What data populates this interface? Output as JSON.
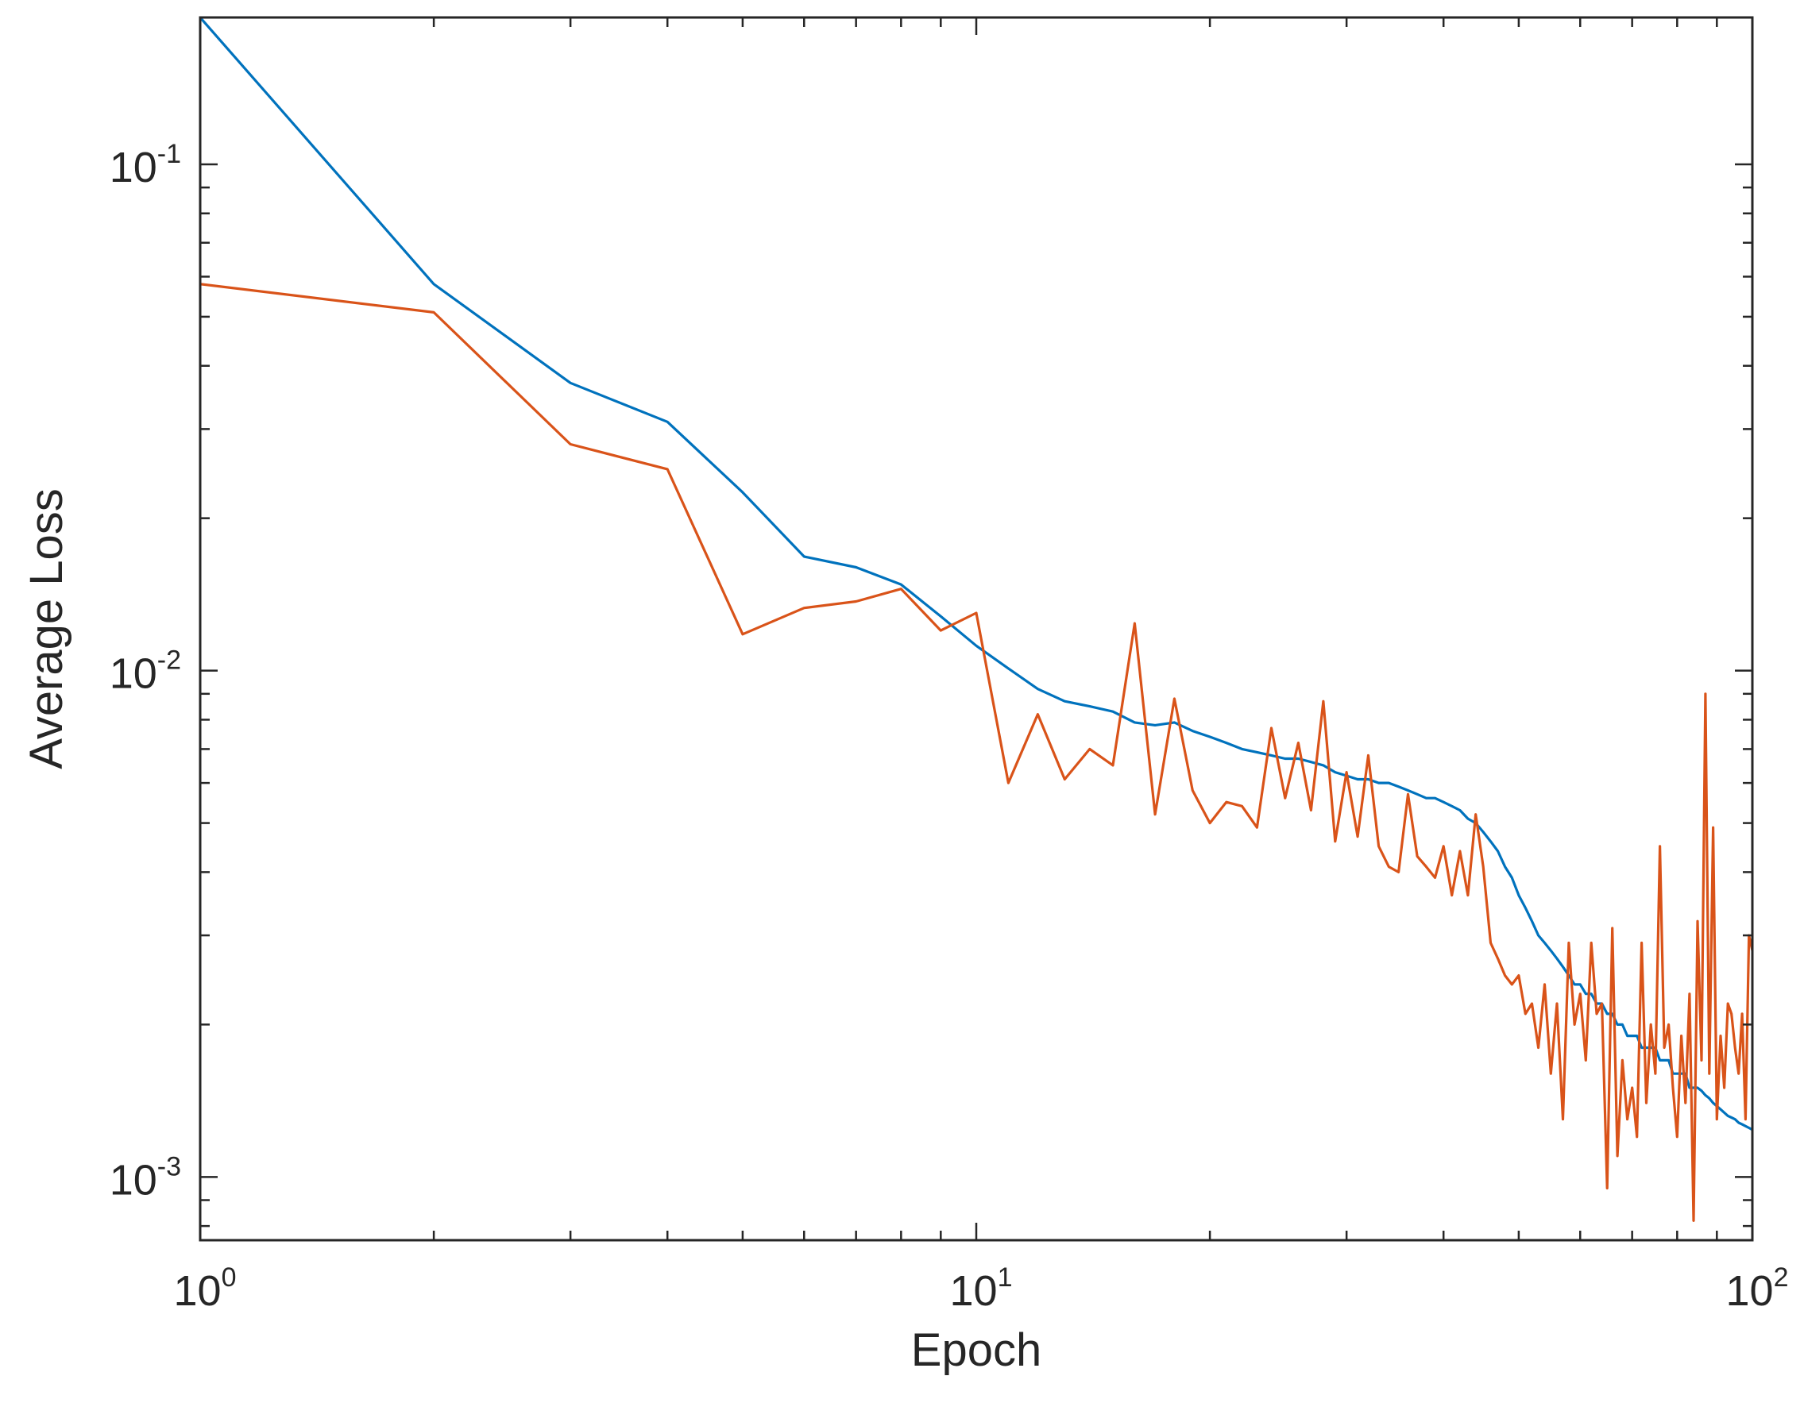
{
  "chart_data": {
    "type": "line",
    "title": "",
    "xlabel": "Epoch",
    "ylabel": "Average Loss",
    "xscale": "log",
    "yscale": "log",
    "xlim": [
      1,
      100
    ],
    "ylim": [
      0.00075,
      0.195
    ],
    "grid": false,
    "legend": "none",
    "x_ticks": [
      {
        "value": 1,
        "base": "10",
        "exp": "0"
      },
      {
        "value": 10,
        "base": "10",
        "exp": "1"
      },
      {
        "value": 100,
        "base": "10",
        "exp": "2"
      }
    ],
    "y_ticks": [
      {
        "value": 0.1,
        "base": "10",
        "exp": "-1"
      },
      {
        "value": 0.01,
        "base": "10",
        "exp": "-2"
      },
      {
        "value": 0.001,
        "base": "10",
        "exp": "-3"
      }
    ],
    "series": [
      {
        "color": "#0072BD",
        "x": [
          1,
          2,
          3,
          4,
          5,
          6,
          7,
          8,
          9,
          10,
          11,
          12,
          13,
          14,
          15,
          16,
          17,
          18,
          19,
          20,
          21,
          22,
          23,
          24,
          25,
          26,
          27,
          28,
          29,
          30,
          31,
          32,
          33,
          34,
          35,
          36,
          37,
          38,
          39,
          40,
          41,
          42,
          43,
          44,
          45,
          46,
          47,
          48,
          49,
          50,
          51,
          52,
          53,
          54,
          55,
          56,
          57,
          58,
          59,
          60,
          61,
          62,
          63,
          64,
          65,
          66,
          67,
          68,
          69,
          70,
          71,
          72,
          73,
          74,
          75,
          76,
          77,
          78,
          79,
          80,
          81,
          82,
          83,
          84,
          85,
          86,
          87,
          88,
          89,
          90,
          91,
          92,
          93,
          94,
          95,
          96,
          97,
          98,
          99,
          100
        ],
        "values": [
          0.195,
          0.058,
          0.037,
          0.031,
          0.0225,
          0.0168,
          0.016,
          0.0148,
          0.0128,
          0.0112,
          0.0101,
          0.0092,
          0.0087,
          0.0085,
          0.0083,
          0.0079,
          0.0078,
          0.0079,
          0.0076,
          0.0074,
          0.0072,
          0.007,
          0.0069,
          0.0068,
          0.0067,
          0.0067,
          0.0066,
          0.0065,
          0.0063,
          0.0062,
          0.0061,
          0.0061,
          0.006,
          0.006,
          0.0059,
          0.0058,
          0.0057,
          0.0056,
          0.0056,
          0.0055,
          0.0054,
          0.0053,
          0.0051,
          0.005,
          0.0048,
          0.0046,
          0.0044,
          0.0041,
          0.0039,
          0.0036,
          0.0034,
          0.0032,
          0.003,
          0.0029,
          0.0028,
          0.0027,
          0.0026,
          0.0025,
          0.0024,
          0.0024,
          0.0023,
          0.0023,
          0.0022,
          0.0022,
          0.0021,
          0.0021,
          0.002,
          0.002,
          0.0019,
          0.0019,
          0.0019,
          0.0018,
          0.0018,
          0.0018,
          0.0018,
          0.0017,
          0.0017,
          0.0017,
          0.0016,
          0.0016,
          0.0016,
          0.0016,
          0.0015,
          0.0015,
          0.0015,
          0.00148,
          0.00145,
          0.00143,
          0.0014,
          0.00138,
          0.00136,
          0.00134,
          0.00132,
          0.00131,
          0.0013,
          0.00128,
          0.00127,
          0.00126,
          0.00125,
          0.00124
        ]
      },
      {
        "color": "#D95319",
        "x": [
          1,
          2,
          3,
          4,
          5,
          6,
          7,
          8,
          9,
          10,
          11,
          12,
          13,
          14,
          15,
          16,
          17,
          18,
          19,
          20,
          21,
          22,
          23,
          24,
          25,
          26,
          27,
          28,
          29,
          30,
          31,
          32,
          33,
          34,
          35,
          36,
          37,
          38,
          39,
          40,
          41,
          42,
          43,
          44,
          45,
          46,
          47,
          48,
          49,
          50,
          51,
          52,
          53,
          54,
          55,
          56,
          57,
          58,
          59,
          60,
          61,
          62,
          63,
          64,
          65,
          66,
          67,
          68,
          69,
          70,
          71,
          72,
          73,
          74,
          75,
          76,
          77,
          78,
          79,
          80,
          81,
          82,
          83,
          84,
          85,
          86,
          87,
          88,
          89,
          90,
          91,
          92,
          93,
          94,
          95,
          96,
          97,
          98,
          99,
          100
        ],
        "values": [
          0.058,
          0.051,
          0.028,
          0.025,
          0.0118,
          0.0133,
          0.0137,
          0.0145,
          0.012,
          0.013,
          0.006,
          0.0082,
          0.0061,
          0.007,
          0.0065,
          0.0124,
          0.0052,
          0.0088,
          0.0058,
          0.005,
          0.0055,
          0.0054,
          0.0049,
          0.0077,
          0.0056,
          0.0072,
          0.0053,
          0.0087,
          0.0046,
          0.0063,
          0.0047,
          0.0068,
          0.0045,
          0.0041,
          0.004,
          0.0057,
          0.0043,
          0.0041,
          0.0039,
          0.0045,
          0.0036,
          0.0044,
          0.0036,
          0.0052,
          0.0041,
          0.0029,
          0.0027,
          0.0025,
          0.0024,
          0.0025,
          0.0021,
          0.0022,
          0.0018,
          0.0024,
          0.0016,
          0.0022,
          0.0013,
          0.0029,
          0.002,
          0.0023,
          0.0017,
          0.0029,
          0.0021,
          0.0022,
          0.00095,
          0.0031,
          0.0011,
          0.0017,
          0.0013,
          0.0015,
          0.0012,
          0.0029,
          0.0014,
          0.002,
          0.0016,
          0.0045,
          0.0018,
          0.002,
          0.0015,
          0.0012,
          0.0019,
          0.0014,
          0.0023,
          0.00082,
          0.0032,
          0.0017,
          0.009,
          0.0016,
          0.0049,
          0.0013,
          0.0019,
          0.0015,
          0.0022,
          0.0021,
          0.0018,
          0.0016,
          0.0021,
          0.0013,
          0.003,
          0.0028
        ]
      }
    ]
  }
}
